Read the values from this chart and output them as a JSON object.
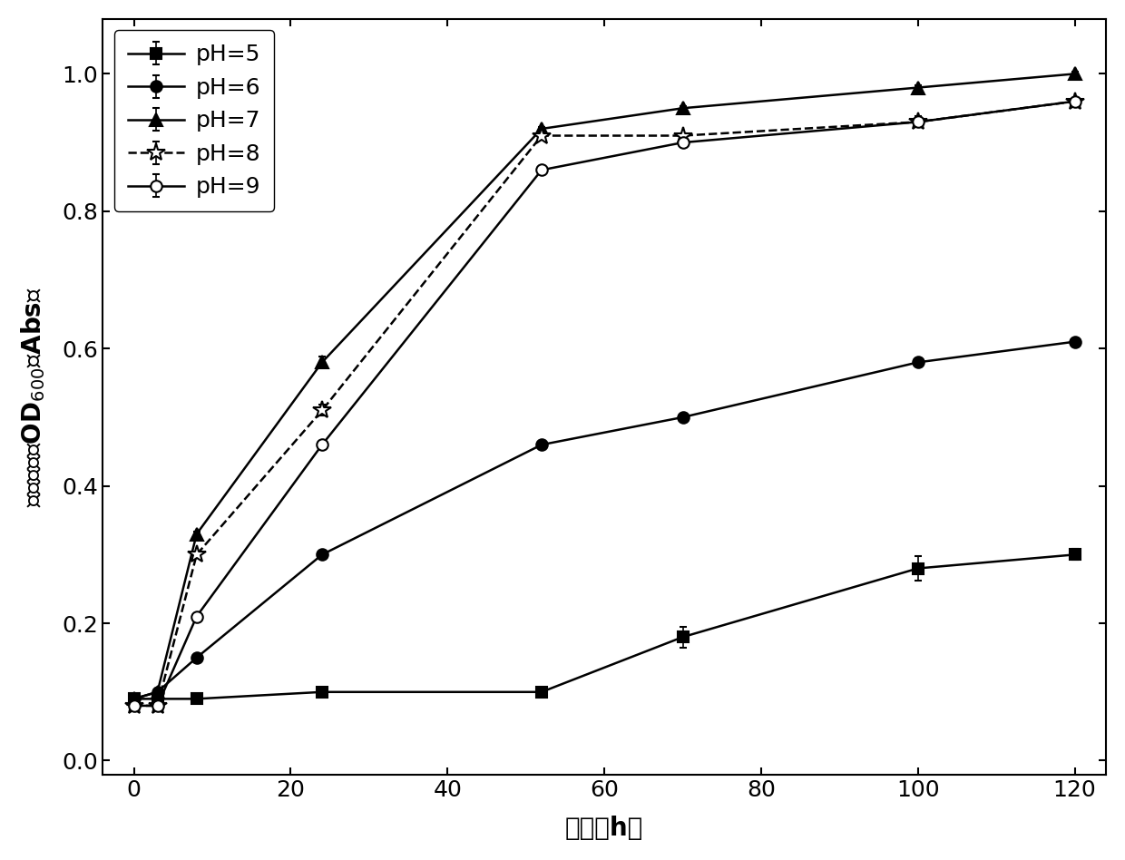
{
  "title": "",
  "xlabel": "时间（h）",
  "xlim": [
    -4,
    124
  ],
  "ylim": [
    -0.02,
    1.08
  ],
  "xticks": [
    0,
    20,
    40,
    60,
    80,
    100,
    120
  ],
  "yticks": [
    0.0,
    0.2,
    0.4,
    0.6,
    0.8,
    1.0
  ],
  "series": [
    {
      "label": "pH=5",
      "x": [
        0,
        3,
        8,
        24,
        52,
        70,
        100,
        120
      ],
      "y": [
        0.09,
        0.09,
        0.09,
        0.1,
        0.1,
        0.18,
        0.28,
        0.3
      ],
      "yerr": [
        0.003,
        0.003,
        0.003,
        0.003,
        0.003,
        0.015,
        0.018,
        0.008
      ],
      "color": "black",
      "marker": "s",
      "linestyle": "-",
      "markersize": 9,
      "markerfacecolor": "black",
      "markeredgecolor": "black"
    },
    {
      "label": "pH=6",
      "x": [
        0,
        3,
        8,
        24,
        52,
        70,
        100,
        120
      ],
      "y": [
        0.09,
        0.1,
        0.15,
        0.3,
        0.46,
        0.5,
        0.58,
        0.61
      ],
      "yerr": [
        0.003,
        0.003,
        0.003,
        0.003,
        0.003,
        0.003,
        0.003,
        0.003
      ],
      "color": "black",
      "marker": "o",
      "linestyle": "-",
      "markersize": 9,
      "markerfacecolor": "black",
      "markeredgecolor": "black"
    },
    {
      "label": "pH=7",
      "x": [
        0,
        3,
        8,
        24,
        52,
        70,
        100,
        120
      ],
      "y": [
        0.09,
        0.1,
        0.33,
        0.58,
        0.92,
        0.95,
        0.98,
        1.0
      ],
      "yerr": [
        0.003,
        0.003,
        0.003,
        0.008,
        0.003,
        0.003,
        0.003,
        0.003
      ],
      "color": "black",
      "marker": "^",
      "linestyle": "-",
      "markersize": 10,
      "markerfacecolor": "black",
      "markeredgecolor": "black"
    },
    {
      "label": "pH=8",
      "x": [
        0,
        3,
        8,
        24,
        52,
        70,
        100,
        120
      ],
      "y": [
        0.08,
        0.08,
        0.3,
        0.51,
        0.91,
        0.91,
        0.93,
        0.96
      ],
      "yerr": [
        0.003,
        0.003,
        0.003,
        0.008,
        0.003,
        0.003,
        0.003,
        0.003
      ],
      "color": "black",
      "marker": "*",
      "linestyle": "--",
      "markersize": 15,
      "markerfacecolor": "white",
      "markeredgecolor": "black"
    },
    {
      "label": "pH=9",
      "x": [
        0,
        3,
        8,
        24,
        52,
        70,
        100,
        120
      ],
      "y": [
        0.08,
        0.08,
        0.21,
        0.46,
        0.86,
        0.9,
        0.93,
        0.96
      ],
      "yerr": [
        0.003,
        0.003,
        0.003,
        0.003,
        0.003,
        0.003,
        0.008,
        0.003
      ],
      "color": "black",
      "marker": "o",
      "linestyle": "-",
      "markersize": 9,
      "markerfacecolor": "white",
      "markeredgecolor": "black"
    }
  ],
  "background_color": "white",
  "font_size": 18,
  "tick_fontsize": 18,
  "label_fontsize": 20
}
